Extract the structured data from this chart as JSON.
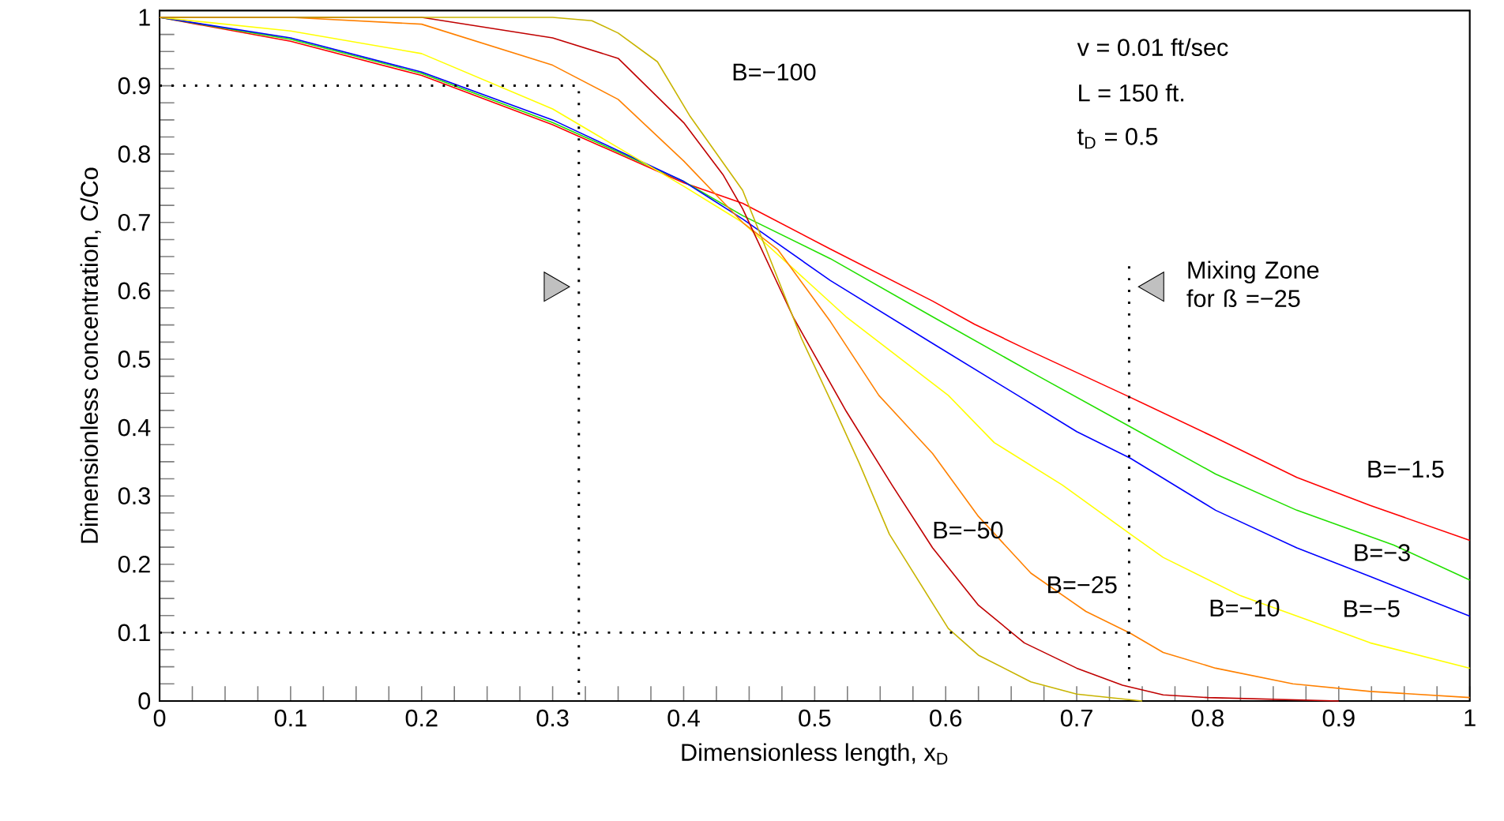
{
  "chart_data": {
    "type": "line",
    "xlabel": "Dimensionless length, x$_{D}$",
    "ylabel": "Dimensionless concentration, C/Co",
    "xlim": [
      0,
      1
    ],
    "ylim": [
      0,
      1.01
    ],
    "xticks": [
      0,
      0.1,
      0.2,
      0.3,
      0.4,
      0.5,
      0.6,
      0.7,
      0.8,
      0.9,
      1
    ],
    "yticks": [
      0,
      0.1,
      0.2,
      0.3,
      0.4,
      0.5,
      0.6,
      0.7,
      0.8,
      0.9,
      1
    ],
    "legend": false,
    "annotations": [
      "v = 0.01 ft/sec",
      "L = 150 ft.",
      "t$_{D}$ = 0.5",
      {
        "text": "Mixing Zone for ß =−25",
        "x": 0.74,
        "y": 0.61
      }
    ],
    "series": [
      {
        "name": "B=−1.5",
        "color": "#ff0000",
        "x": [
          0,
          0.1,
          0.2,
          0.3,
          0.4,
          0.445,
          0.512,
          0.59,
          0.622,
          0.66,
          0.74,
          0.806,
          0.868,
          0.924,
          1.0
        ],
        "values": [
          1.0,
          0.965,
          0.915,
          0.843,
          0.758,
          0.728,
          0.661,
          0.585,
          0.551,
          0.516,
          0.445,
          0.385,
          0.327,
          0.286,
          0.235
        ]
      },
      {
        "name": "B=−3",
        "color": "#22e000",
        "x": [
          0,
          0.1,
          0.2,
          0.3,
          0.4,
          0.445,
          0.512,
          0.59,
          0.669,
          0.741,
          0.806,
          0.868,
          0.942,
          1.0
        ],
        "values": [
          1.0,
          0.968,
          0.918,
          0.846,
          0.76,
          0.71,
          0.647,
          0.562,
          0.477,
          0.401,
          0.332,
          0.279,
          0.228,
          0.177
        ]
      },
      {
        "name": "B=−5",
        "color": "#0000ff",
        "x": [
          0,
          0.1,
          0.2,
          0.3,
          0.4,
          0.445,
          0.512,
          0.59,
          0.655,
          0.7,
          0.741,
          0.806,
          0.868,
          0.924,
          1.0
        ],
        "values": [
          1.0,
          0.97,
          0.92,
          0.85,
          0.76,
          0.705,
          0.615,
          0.523,
          0.447,
          0.394,
          0.355,
          0.279,
          0.224,
          0.182,
          0.124
        ]
      },
      {
        "name": "B=−10",
        "color": "#ffff00",
        "x": [
          0,
          0.1,
          0.2,
          0.3,
          0.4,
          0.445,
          0.524,
          0.602,
          0.637,
          0.689,
          0.741,
          0.766,
          0.825,
          0.877,
          0.924,
          1.0
        ],
        "values": [
          1.0,
          0.98,
          0.947,
          0.866,
          0.753,
          0.7,
          0.562,
          0.447,
          0.378,
          0.316,
          0.244,
          0.21,
          0.154,
          0.118,
          0.085,
          0.048
        ]
      },
      {
        "name": "B=−25",
        "color": "#ff8000",
        "x": [
          0,
          0.1,
          0.2,
          0.3,
          0.35,
          0.4,
          0.445,
          0.472,
          0.512,
          0.549,
          0.59,
          0.625,
          0.665,
          0.707,
          0.741,
          0.766,
          0.806,
          0.865,
          0.924,
          1.0
        ],
        "values": [
          1.0,
          1.0,
          0.99,
          0.93,
          0.88,
          0.79,
          0.7,
          0.66,
          0.555,
          0.447,
          0.362,
          0.27,
          0.187,
          0.131,
          0.099,
          0.071,
          0.048,
          0.025,
          0.014,
          0.005
        ]
      },
      {
        "name": "B=−50",
        "color": "#c00000",
        "x": [
          0,
          0.2,
          0.3,
          0.35,
          0.4,
          0.43,
          0.445,
          0.484,
          0.524,
          0.559,
          0.59,
          0.625,
          0.66,
          0.7,
          0.735,
          0.766,
          0.8,
          0.9
        ],
        "values": [
          1.0,
          1.0,
          0.97,
          0.94,
          0.846,
          0.77,
          0.72,
          0.56,
          0.424,
          0.316,
          0.224,
          0.14,
          0.085,
          0.048,
          0.023,
          0.009,
          0.005,
          0.0
        ]
      },
      {
        "name": "B=−100",
        "color": "#c8b400",
        "x": [
          0,
          0.3,
          0.33,
          0.35,
          0.38,
          0.405,
          0.445,
          0.457,
          0.49,
          0.516,
          0.534,
          0.557,
          0.602,
          0.625,
          0.665,
          0.7,
          0.75
        ],
        "values": [
          1.0,
          1.0,
          0.995,
          0.977,
          0.935,
          0.855,
          0.747,
          0.69,
          0.53,
          0.424,
          0.348,
          0.244,
          0.106,
          0.067,
          0.028,
          0.01,
          0.0
        ]
      },
      {
        "type": "line",
        "line_style": "dotted",
        "color": "#000000",
        "x": [
          0,
          0.32,
          0.32
        ],
        "values": [
          0.9,
          0.9,
          0
        ]
      },
      {
        "type": "line",
        "line_style": "dotted",
        "color": "#000000",
        "x": [
          0,
          0.74
        ],
        "values": [
          0.1,
          0.1
        ]
      },
      {
        "type": "line",
        "line_style": "dotted",
        "color": "#000000",
        "x": [
          0.74,
          0.74
        ],
        "values": [
          0.636,
          0
        ]
      },
      {
        "type": "scatter",
        "marker": "triangle",
        "color": "#c0c0c0",
        "x": [
          0.3,
          0.76
        ],
        "values": [
          0.606,
          0.606
        ]
      }
    ]
  }
}
